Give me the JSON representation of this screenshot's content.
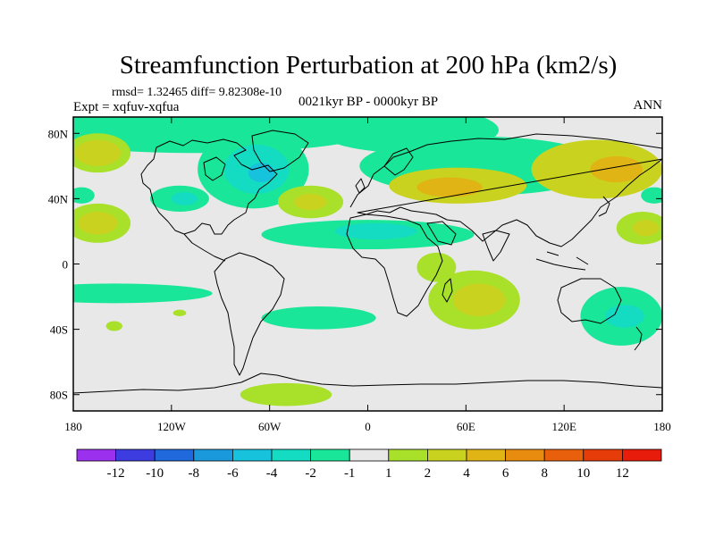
{
  "chart_data": {
    "type": "heatmap",
    "title": "Streamfunction Perturbation at 200 hPa (km2/s)",
    "stats": "rmsd= 1.32465 diff= 9.82308e-10",
    "experiment": "Expt = xqfuv-xqfua",
    "period": "0021kyr BP - 0000kyr BP",
    "season": "ANN",
    "projection": "cylindrical equidistant",
    "x_range": [
      -180,
      180
    ],
    "y_range": [
      -90,
      90
    ],
    "x_ticks": [
      {
        "value": -180,
        "label": "180"
      },
      {
        "value": -120,
        "label": "120W"
      },
      {
        "value": -60,
        "label": "60W"
      },
      {
        "value": 0,
        "label": "0"
      },
      {
        "value": 60,
        "label": "60E"
      },
      {
        "value": 120,
        "label": "120E"
      },
      {
        "value": 180,
        "label": "180"
      }
    ],
    "y_ticks": [
      {
        "value": 80,
        "label": "80N"
      },
      {
        "value": 40,
        "label": "40N"
      },
      {
        "value": 0,
        "label": "0"
      },
      {
        "value": -40,
        "label": "40S"
      },
      {
        "value": -80,
        "label": "80S"
      }
    ],
    "colorbar": {
      "levels": [
        "-12",
        "-10",
        "-8",
        "-6",
        "-4",
        "-2",
        "-1",
        "1",
        "2",
        "4",
        "6",
        "8",
        "10",
        "12"
      ],
      "colors": [
        "#9b30ef",
        "#3c3ce0",
        "#1f69dc",
        "#1a99dc",
        "#17c3dc",
        "#14dcc3",
        "#19e698",
        "#e8e8e8",
        "#a8e02a",
        "#c9d21e",
        "#e0b414",
        "#e88c10",
        "#e8600c",
        "#e63c0a",
        "#e81c0a"
      ]
    },
    "regions": [
      {
        "name": "arctic-north-atlantic",
        "value": -1,
        "lon": -105,
        "lat": 82,
        "rlon": 110,
        "rlat": 14
      },
      {
        "name": "arctic-eurasia",
        "value": -1,
        "lon": 25,
        "lat": 82,
        "rlon": 55,
        "rlat": 14
      },
      {
        "name": "north-pacific-west",
        "value": 1,
        "lon": -165,
        "lat": 68,
        "rlon": 20,
        "rlat": 12
      },
      {
        "name": "north-pacific-west-core",
        "value": 2,
        "lon": -165,
        "lat": 68,
        "rlon": 14,
        "rlat": 8
      },
      {
        "name": "central-asia",
        "value": -1,
        "lon": 70,
        "lat": 60,
        "rlon": 75,
        "rlat": 18
      },
      {
        "name": "central-asia-warm",
        "value": 2,
        "lon": 55,
        "lat": 48,
        "rlon": 42,
        "rlat": 11
      },
      {
        "name": "central-asia-core",
        "value": 4,
        "lon": 50,
        "lat": 47,
        "rlon": 20,
        "rlat": 6
      },
      {
        "name": "east-asia",
        "value": 2,
        "lon": 140,
        "lat": 58,
        "rlon": 40,
        "rlat": 18
      },
      {
        "name": "east-asia-core",
        "value": 4,
        "lon": 152,
        "lat": 58,
        "rlon": 16,
        "rlat": 8
      },
      {
        "name": "north-america",
        "value": -1,
        "lon": -70,
        "lat": 58,
        "rlon": 34,
        "rlat": 24
      },
      {
        "name": "north-america-core",
        "value": -2,
        "lon": -68,
        "lat": 58,
        "rlon": 20,
        "rlat": 15
      },
      {
        "name": "north-america-deep",
        "value": -4,
        "lon": -65,
        "lat": 56,
        "rlon": 8,
        "rlat": 6
      },
      {
        "name": "gulf",
        "value": -1,
        "lon": -115,
        "lat": 40,
        "rlon": 18,
        "rlat": 8
      },
      {
        "name": "gulf-core",
        "value": -2,
        "lon": -112,
        "lat": 40,
        "rlon": 8,
        "rlat": 4
      },
      {
        "name": "atlantic-midlat",
        "value": 1,
        "lon": -35,
        "lat": 38,
        "rlon": 20,
        "rlat": 10
      },
      {
        "name": "atlantic-midlat-core",
        "value": 2,
        "lon": -35,
        "lat": 38,
        "rlon": 10,
        "rlat": 5
      },
      {
        "name": "east-pacific-west",
        "value": -1,
        "lon": -175,
        "lat": 42,
        "rlon": 8,
        "rlat": 5
      },
      {
        "name": "west-pacific-east",
        "value": -1,
        "lon": 175,
        "lat": 42,
        "rlon": 8,
        "rlat": 5
      },
      {
        "name": "subtropical-band",
        "value": -1,
        "lon": 0,
        "lat": 18,
        "rlon": 65,
        "rlat": 9
      },
      {
        "name": "subtropical-band-core",
        "value": -2,
        "lon": 5,
        "lat": 20,
        "rlon": 25,
        "rlat": 5
      },
      {
        "name": "east-pacific-tropics",
        "value": 1,
        "lon": -165,
        "lat": 25,
        "rlon": 20,
        "rlat": 12
      },
      {
        "name": "east-pacific-tropics-core",
        "value": 2,
        "lon": -165,
        "lat": 25,
        "rlon": 12,
        "rlat": 7
      },
      {
        "name": "west-pacific-tropics",
        "value": 1,
        "lon": 168,
        "lat": 22,
        "rlon": 16,
        "rlat": 10
      },
      {
        "name": "west-pacific-tropics-core",
        "value": 2,
        "lon": 170,
        "lat": 22,
        "rlon": 8,
        "rlat": 5
      },
      {
        "name": "east-africa",
        "value": 1,
        "lon": 42,
        "lat": -2,
        "rlon": 12,
        "rlat": 9
      },
      {
        "name": "indian-ocean-south",
        "value": 1,
        "lon": 65,
        "lat": -22,
        "rlon": 28,
        "rlat": 18
      },
      {
        "name": "indian-ocean-south-core",
        "value": 2,
        "lon": 68,
        "lat": -22,
        "rlon": 16,
        "rlat": 10
      },
      {
        "name": "south-pacific-band",
        "value": -1,
        "lon": -155,
        "lat": -18,
        "rlon": 60,
        "rlat": 6
      },
      {
        "name": "south-atlantic",
        "value": -1,
        "lon": -30,
        "lat": -33,
        "rlon": 35,
        "rlat": 7
      },
      {
        "name": "australia-east",
        "value": -1,
        "lon": 155,
        "lat": -32,
        "rlon": 25,
        "rlat": 18
      },
      {
        "name": "australia-east-core",
        "value": -2,
        "lon": 157,
        "lat": -32,
        "rlon": 12,
        "rlat": 7
      },
      {
        "name": "south-pacific-warm",
        "value": 1,
        "lon": -155,
        "lat": -38,
        "rlon": 5,
        "rlat": 3
      },
      {
        "name": "south-pacific-warm-2",
        "value": 1,
        "lon": -115,
        "lat": -30,
        "rlon": 4,
        "rlat": 2
      },
      {
        "name": "antarctic-atlantic",
        "value": 1,
        "lon": -50,
        "lat": -80,
        "rlon": 28,
        "rlat": 7
      }
    ]
  }
}
